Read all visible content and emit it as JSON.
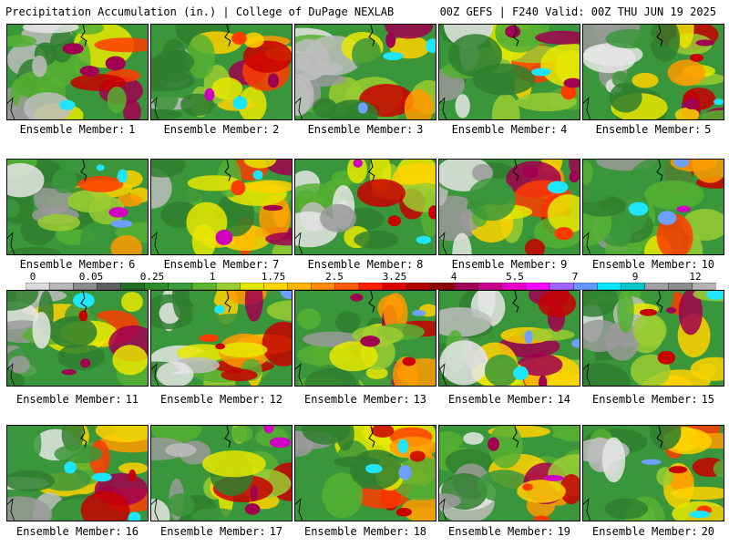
{
  "header": {
    "left_title": "Precipitation Accumulation (in.) | College of DuPage NEXLAB",
    "right_title": "00Z GEFS | F240 Valid: 00Z THU JUN 19 2025"
  },
  "label_prefix": "Ensemble Member:",
  "members": [
    "1",
    "2",
    "3",
    "4",
    "5",
    "6",
    "7",
    "8",
    "9",
    "10",
    "11",
    "12",
    "13",
    "14",
    "15",
    "16",
    "17",
    "18",
    "19",
    "20"
  ],
  "colorbar": {
    "tick_labels": [
      "0",
      "0.05",
      "0.25",
      "1",
      "1.75",
      "2.5",
      "3.25",
      "4",
      "5.5",
      "7",
      "9",
      "12"
    ],
    "colors": [
      "#dcdcdc",
      "#b9b9b9",
      "#8c8c8c",
      "#5f5f5f",
      "#226f22",
      "#2e8b2e",
      "#3a9c3a",
      "#5ab432",
      "#9acd32",
      "#e6e600",
      "#ffd700",
      "#ffb400",
      "#ff8c00",
      "#ff5a00",
      "#ff1e00",
      "#dc0000",
      "#b40000",
      "#8c0000",
      "#a0005a",
      "#c8008c",
      "#e600c8",
      "#ff00ff",
      "#a064ff",
      "#6496ff",
      "#00e6ff",
      "#00c8c8",
      "#a0a0a0",
      "#8c8c8c",
      "#b4b4b4"
    ]
  }
}
